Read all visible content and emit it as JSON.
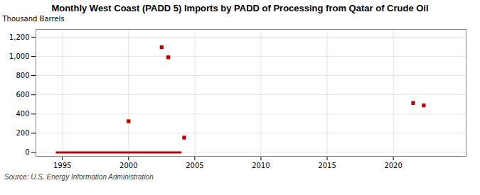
{
  "chart_data": {
    "type": "scatter",
    "title": "Monthly West Coast (PADD 5) Imports by PADD of Processing from Qatar of Crude Oil",
    "ylabel": "Thousand Barrels",
    "source": "Source: U.S. Energy Information Administration",
    "series": [
      {
        "type": "line",
        "color": "#bb0000",
        "x": [
          1994.5,
          2004.0
        ],
        "values": [
          0,
          0
        ]
      },
      {
        "type": "scatter",
        "color": "#bb0000",
        "marker": "square",
        "x": [
          2000.0,
          2002.5,
          2003.0,
          2004.2,
          2021.5,
          2022.3
        ],
        "values": [
          325,
          1095,
          990,
          155,
          515,
          490
        ]
      }
    ],
    "xlim": [
      1993.0,
      2025.5
    ],
    "ylim": [
      -40,
      1280
    ],
    "xticks": [
      1995,
      2000,
      2005,
      2010,
      2015,
      2020
    ],
    "yticks": [
      0,
      200,
      400,
      600,
      800,
      {
        "value": 1000,
        "label": "1,000"
      },
      {
        "value": 1200,
        "label": "1,200"
      }
    ],
    "grid": true
  }
}
